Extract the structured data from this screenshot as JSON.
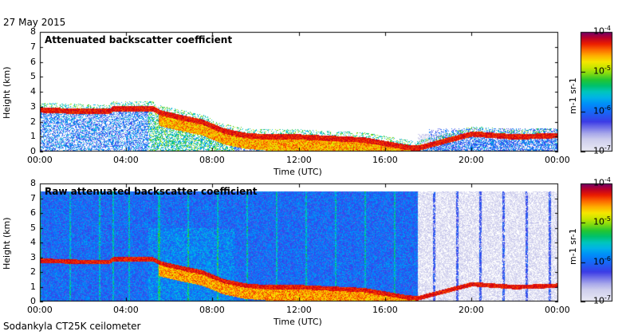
{
  "date": "27 May 2015",
  "footer": "Sodankyla CT25K ceilometer",
  "chart_data": [
    {
      "type": "heatmap",
      "title": "Attenuated backscatter coefficient",
      "xlabel": "Time (UTC)",
      "ylabel": "Height (km)",
      "xticks": [
        "00:00",
        "04:00",
        "08:00",
        "12:00",
        "16:00",
        "20:00",
        "00:00"
      ],
      "xlim_hours": [
        0,
        24
      ],
      "ylim": [
        0,
        8
      ],
      "yticks": [
        0,
        1,
        2,
        3,
        4,
        5,
        6,
        7,
        8
      ],
      "colorbar": {
        "label": "m-1 sr-1",
        "scale": "log",
        "range": [
          1e-07,
          0.0001
        ],
        "ticks": [
          "10-7",
          "10-6",
          "10-5",
          "10-4"
        ]
      },
      "cloud_base_km": {
        "hours": [
          0.0,
          2.0,
          3.2,
          3.4,
          5.2,
          5.6,
          6.5,
          7.5,
          8.5,
          9.5,
          10.5,
          12.0,
          13.5,
          15.0,
          16.2,
          17.0,
          17.5,
          20.0,
          22.0,
          24.0
        ],
        "height": [
          2.8,
          2.7,
          2.7,
          2.9,
          2.9,
          2.6,
          2.3,
          2.0,
          1.4,
          1.1,
          1.0,
          1.0,
          0.9,
          0.8,
          0.5,
          0.3,
          0.25,
          1.2,
          1.0,
          1.1
        ]
      }
    },
    {
      "type": "heatmap",
      "title": "Raw attenuated backscatter coefficient",
      "xlabel": "Time (UTC)",
      "ylabel": "Height (km)",
      "xticks": [
        "00:00",
        "04:00",
        "08:00",
        "12:00",
        "16:00",
        "20:00",
        "00:00"
      ],
      "xlim_hours": [
        0,
        24
      ],
      "ylim": [
        0,
        8
      ],
      "yticks": [
        0,
        1,
        2,
        3,
        4,
        5,
        6,
        7,
        8
      ],
      "colorbar": {
        "label": "m-1 sr-1",
        "scale": "log",
        "range": [
          1e-07,
          0.0001
        ],
        "ticks": [
          "10-7",
          "10-6",
          "10-5",
          "10-4"
        ]
      },
      "data_top_km": 7.5,
      "noise_gap_hours": [
        17.5,
        24.0
      ]
    }
  ]
}
